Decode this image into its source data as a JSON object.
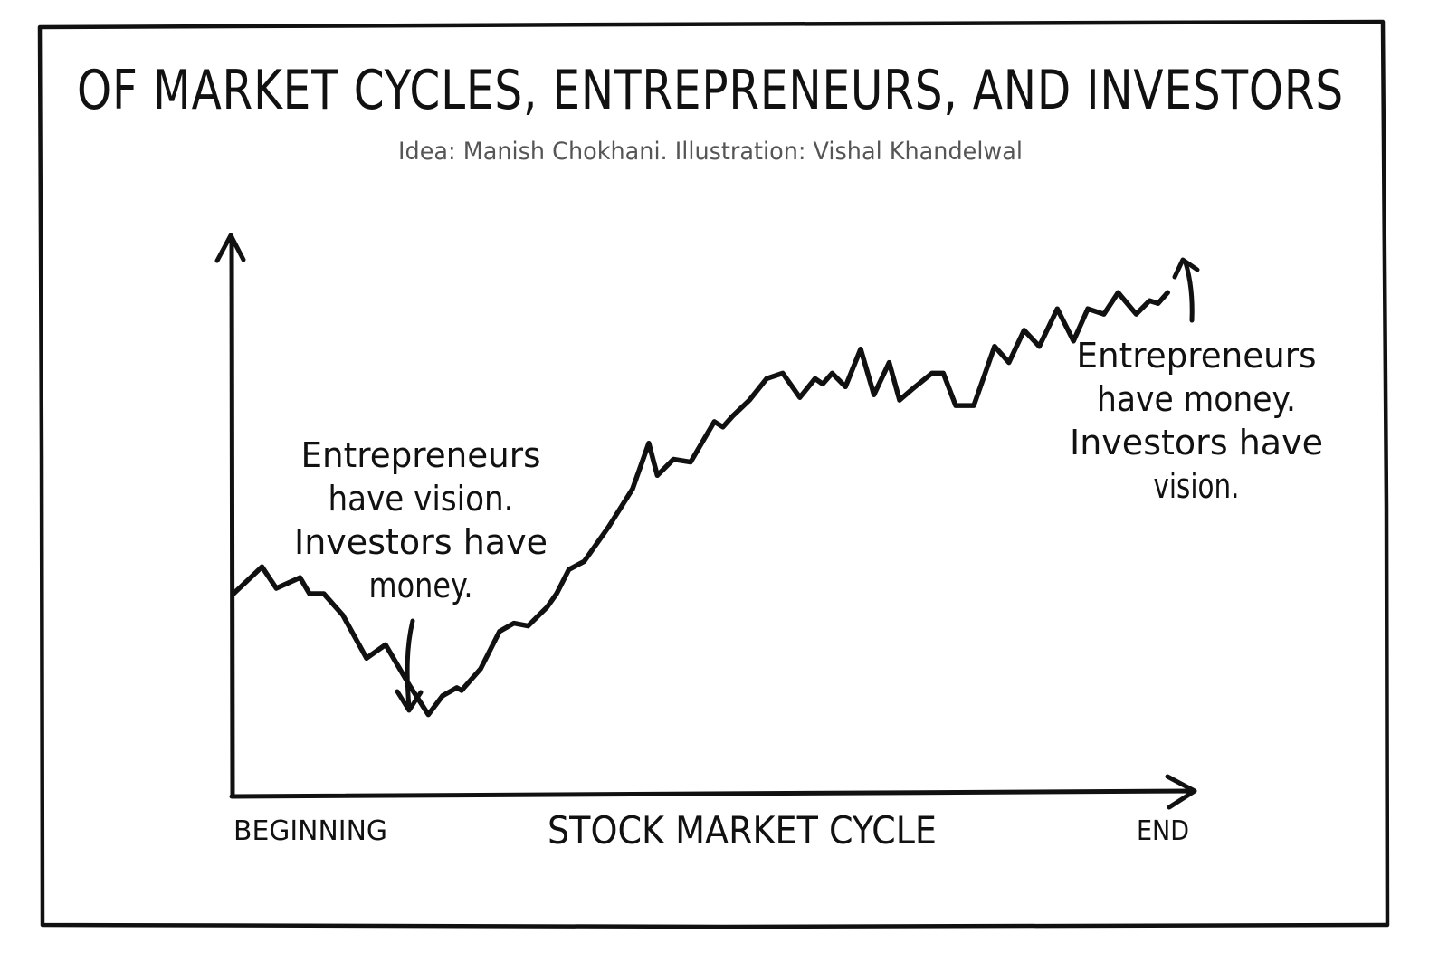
{
  "chart_data": {
    "type": "line",
    "title": "OF MARKET CYCLES, ENTREPRENEURS, AND INVESTORS",
    "subtitle": "Idea: Manish Chokhani. Illustration: Vishal Khandelwal",
    "xlabel": "STOCK MARKET CYCLE",
    "ylabel": "",
    "x_tick_labels": [
      "BEGINNING",
      "END"
    ],
    "grid": false,
    "xlim": [
      0,
      100
    ],
    "ylim": [
      0,
      100
    ],
    "series": [
      {
        "x": [
          0,
          3,
          4.5,
          7,
          8,
          9.5,
          11.5,
          14,
          16,
          17,
          18.5,
          20.5,
          22,
          23.5,
          24,
          26,
          28,
          29.5,
          31,
          33,
          34,
          35.3,
          36.9,
          39.5,
          42,
          43.7,
          44.6,
          46.3,
          48.1,
          50.6,
          51.5,
          52.5,
          54.3,
          56.1,
          57.8,
          59.6,
          61.2,
          62,
          63,
          64.4,
          66,
          67.4,
          69,
          70.1,
          71.4,
          73.5,
          74.7,
          76,
          77.9,
          80.1,
          81.6,
          83.2,
          84.8,
          86.7,
          88.4,
          89.9,
          91.6,
          93.1,
          95,
          96.4,
          97.3,
          98.3
        ],
        "y": [
          33,
          38,
          34,
          36,
          33,
          33,
          29,
          21,
          23.5,
          20.5,
          16,
          10.5,
          14,
          15.5,
          15,
          19,
          26,
          27.5,
          27,
          30.5,
          33,
          37.5,
          39,
          45.5,
          52.5,
          61,
          55,
          58,
          57.5,
          65,
          64,
          66,
          69,
          73,
          74,
          69.5,
          73,
          72,
          74,
          71.5,
          78.5,
          70,
          76,
          69,
          71,
          74,
          74,
          68,
          68,
          79,
          76,
          82,
          79,
          86,
          80,
          86,
          85,
          89,
          85,
          87.5,
          87,
          89
        ]
      }
    ],
    "annotations": [
      {
        "lines": [
          "Entrepreneurs",
          "have vision.",
          "Investors have",
          "money."
        ],
        "points_to_x": 18.5
      },
      {
        "lines": [
          "Entrepreneurs",
          "have money.",
          "Investors have",
          "vision."
        ],
        "points_to_x": 98.3
      }
    ]
  }
}
